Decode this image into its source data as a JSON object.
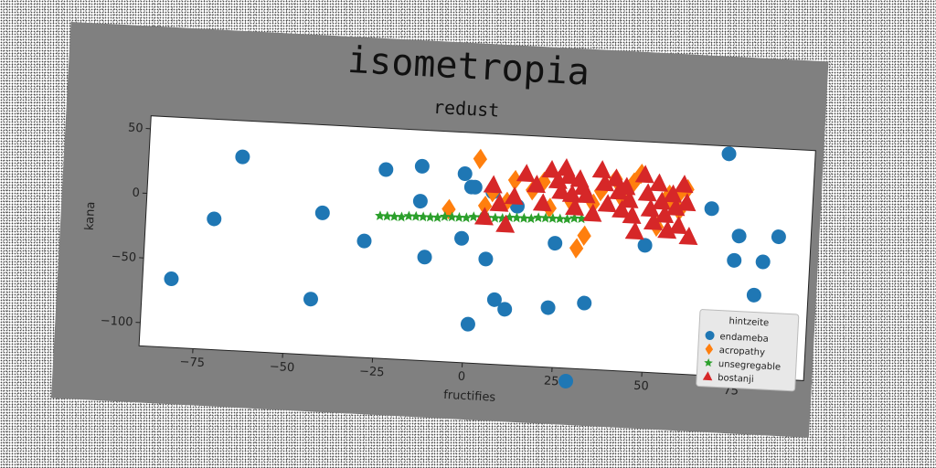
{
  "chart_data": {
    "type": "scatter",
    "title": "isometropia",
    "subtitle": "redust",
    "xlabel": "fructifies",
    "ylabel": "kana",
    "xlim": [
      -90,
      95
    ],
    "ylim": [
      -118,
      60
    ],
    "xticks": [
      -75,
      -50,
      -25,
      0,
      25,
      50,
      75
    ],
    "yticks": [
      -100,
      -50,
      0,
      50
    ],
    "grid": false,
    "legend": {
      "title": "hintzeite",
      "placement": "lower-right"
    },
    "series": [
      {
        "name": "endameba",
        "marker": "circle",
        "color": "#1f77b4",
        "x": [
          -82,
          -71,
          -64,
          -43,
          -41,
          -29,
          -24,
          -14,
          -14,
          -12,
          -2,
          -2,
          0,
          1,
          1,
          5,
          6,
          8,
          11,
          13,
          23,
          24,
          29,
          33,
          49,
          67,
          71,
          74,
          75,
          80,
          82,
          86
        ],
        "y": [
          -65,
          -17,
          32,
          -75,
          -8,
          -28,
          28,
          32,
          5,
          -38,
          28,
          -22,
          18,
          18,
          -88,
          -37,
          15,
          -68,
          -75,
          5,
          -72,
          -22,
          -128,
          -67,
          -20,
          11,
          54,
          -28,
          -9,
          -54,
          -28,
          -8
        ]
      },
      {
        "name": "acropathy",
        "marker": "diamond",
        "color": "#ff7f0e",
        "x": [
          -6,
          2,
          4,
          6,
          10,
          12,
          17,
          20,
          22,
          28,
          30,
          32,
          34,
          36,
          40,
          42,
          45,
          47,
          52,
          55,
          56,
          58,
          58,
          60
        ],
        "y": [
          0,
          40,
          4,
          15,
          8,
          25,
          18,
          25,
          5,
          10,
          -25,
          -15,
          10,
          20,
          30,
          15,
          28,
          35,
          -5,
          20,
          15,
          8,
          22,
          25
        ],
        "drawn": [
          [
            -6,
            0
          ],
          [
            2,
            40
          ],
          [
            4,
            4
          ],
          [
            6,
            15
          ],
          [
            10,
            8
          ],
          [
            12,
            25
          ],
          [
            17,
            18
          ],
          [
            20,
            25
          ],
          [
            22,
            5
          ],
          [
            28,
            10
          ],
          [
            30,
            -25
          ],
          [
            32,
            -15
          ],
          [
            34,
            10
          ],
          [
            36,
            20
          ],
          [
            40,
            30
          ],
          [
            42,
            15
          ],
          [
            45,
            28
          ],
          [
            47,
            35
          ],
          [
            52,
            -5
          ],
          [
            55,
            20
          ],
          [
            56,
            15
          ],
          [
            58,
            8
          ],
          [
            58,
            22
          ],
          [
            60,
            25
          ]
        ]
      },
      {
        "name": "unsegregable",
        "marker": "star",
        "color": "#2ca02c",
        "x": [
          -25,
          -23,
          -21,
          -19,
          -17,
          -15,
          -13,
          -11,
          -9,
          -7,
          -5,
          -3,
          -1,
          1,
          3,
          5,
          7,
          9,
          11,
          13,
          15,
          17,
          19,
          21,
          23,
          25,
          27,
          29,
          31
        ],
        "y": [
          -8,
          -8,
          -8,
          -8,
          -7,
          -7,
          -7,
          -7,
          -7,
          -6,
          -6,
          -6,
          -6,
          -5,
          -5,
          -5,
          -5,
          -5,
          -4,
          -4,
          -4,
          -4,
          -3,
          -3,
          -3,
          -3,
          -3,
          -2,
          -2
        ]
      },
      {
        "name": "bostanji",
        "marker": "triangle",
        "color": "#d62728",
        "x": [
          4,
          6,
          8,
          10,
          12,
          15,
          18,
          20,
          22,
          24,
          25,
          26,
          27,
          28,
          29,
          30,
          31,
          32,
          34,
          36,
          37,
          38,
          40,
          41,
          42,
          43,
          44,
          45,
          46,
          48,
          49,
          50,
          51,
          52,
          53,
          54,
          55,
          56,
          57,
          58,
          59,
          60,
          61
        ],
        "y": [
          -5,
          20,
          6,
          -10,
          12,
          30,
          22,
          8,
          34,
          26,
          18,
          36,
          30,
          16,
          6,
          28,
          22,
          16,
          2,
          36,
          26,
          10,
          30,
          20,
          6,
          24,
          14,
          2,
          -10,
          34,
          20,
          8,
          -2,
          28,
          14,
          4,
          -8,
          20,
          10,
          -4,
          28,
          14,
          -12
        ]
      }
    ]
  }
}
